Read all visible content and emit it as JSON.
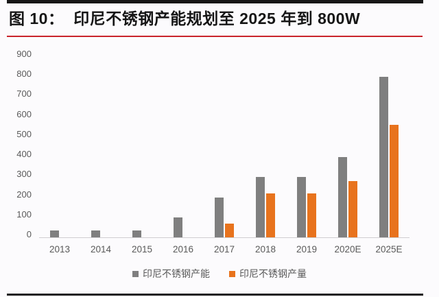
{
  "page": {
    "background_color": "#fcfbfd",
    "rule_color": "#171717",
    "title_underline_color": "#c9242b"
  },
  "header": {
    "title": "图 10：  印尼不锈钢产能规划至 2025 年到 800W"
  },
  "chart_data": {
    "type": "bar",
    "categories": [
      "2013",
      "2014",
      "2015",
      "2016",
      "2017",
      "2018",
      "2019",
      "2020E",
      "2025E"
    ],
    "series": [
      {
        "name": "印尼不锈钢产能",
        "color": "#7f7f7f",
        "values": [
          35,
          35,
          35,
          100,
          200,
          300,
          300,
          400,
          800
        ]
      },
      {
        "name": "印尼不锈钢产量",
        "color": "#e8731d",
        "values": [
          0,
          0,
          0,
          0,
          70,
          220,
          220,
          280,
          560
        ]
      }
    ],
    "title": "",
    "xlabel": "",
    "ylabel": "",
    "ylim": [
      0,
      900
    ],
    "ytick_step": 100,
    "yticks": [
      "900",
      "800",
      "700",
      "600",
      "500",
      "400",
      "300",
      "200",
      "100",
      "0"
    ],
    "grid": false,
    "legend_position": "bottom",
    "axis_text_color": "#595959",
    "axis_line_color": "#cfcdd0"
  }
}
